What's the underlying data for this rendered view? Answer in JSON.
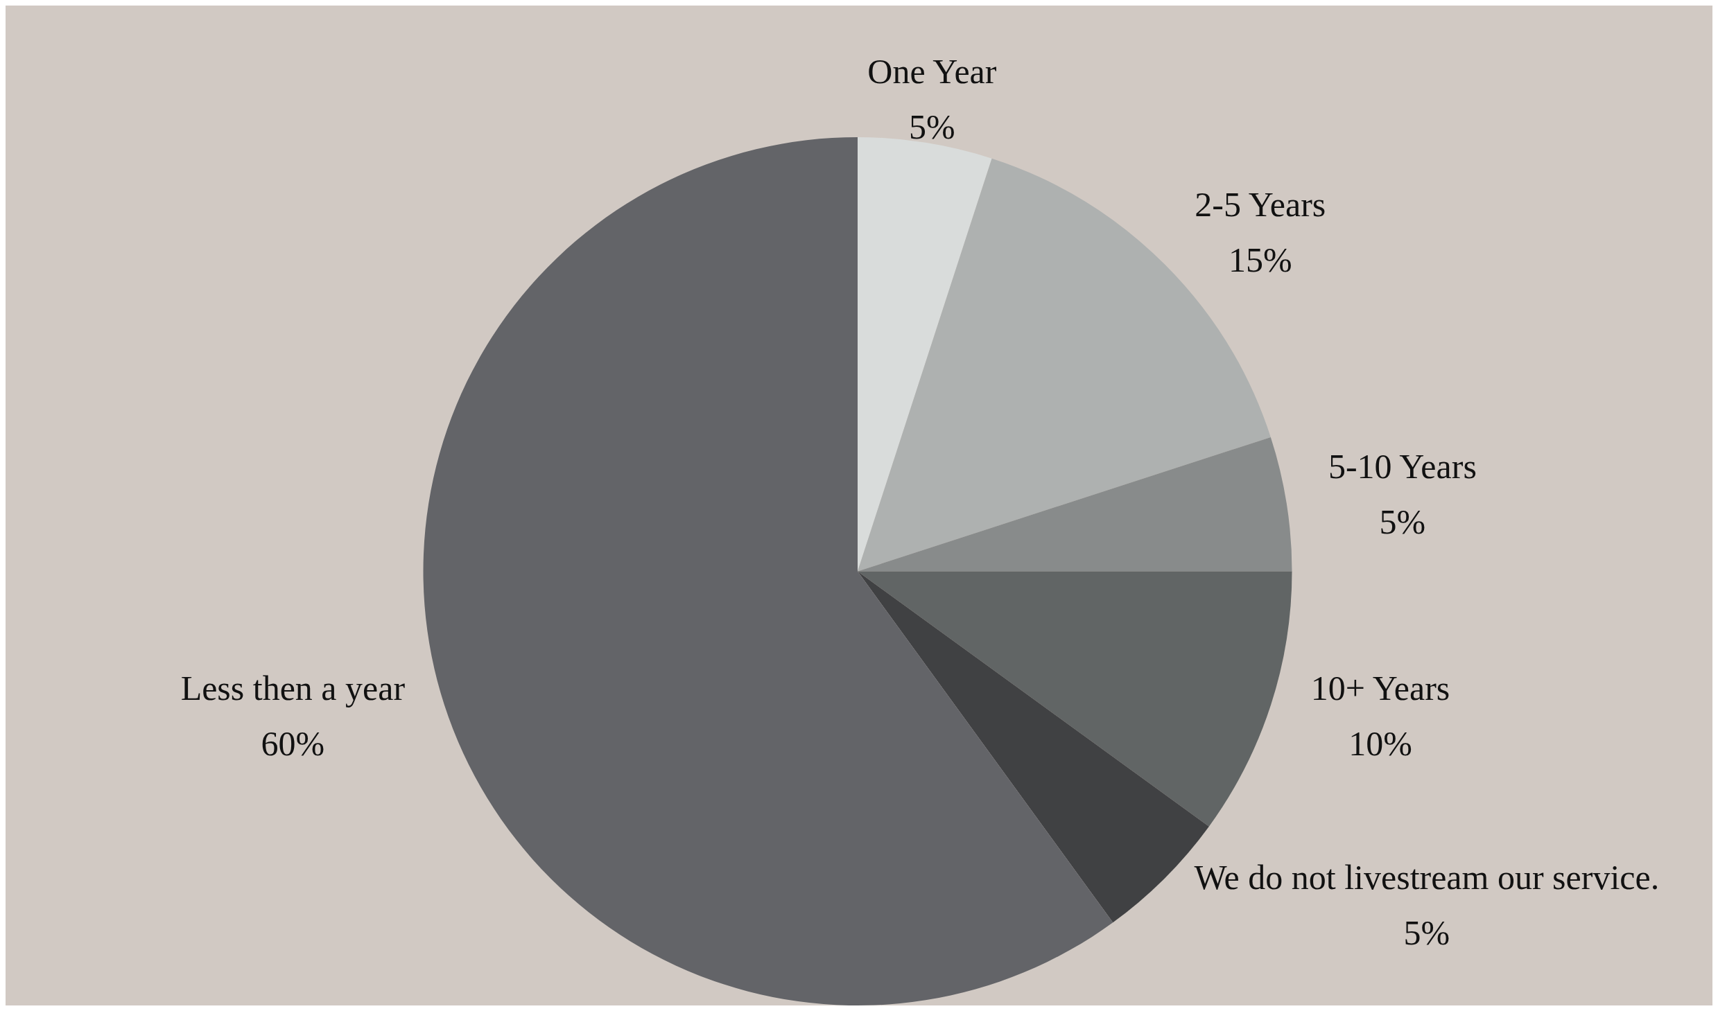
{
  "chart_data": {
    "type": "pie",
    "categories": [
      "One Year",
      "2-5 Years",
      "5-10 Years",
      "10+ Years",
      "We do not livestream our service.",
      "Less then a year"
    ],
    "values": [
      5,
      15,
      5,
      10,
      5,
      60
    ],
    "value_labels": [
      "5%",
      "15%",
      "5%",
      "10%",
      "5%",
      "60%"
    ],
    "colors": [
      "#d9dcdb",
      "#aeb1b0",
      "#888b8b",
      "#616565",
      "#404143",
      "#636468"
    ],
    "legend": false
  }
}
